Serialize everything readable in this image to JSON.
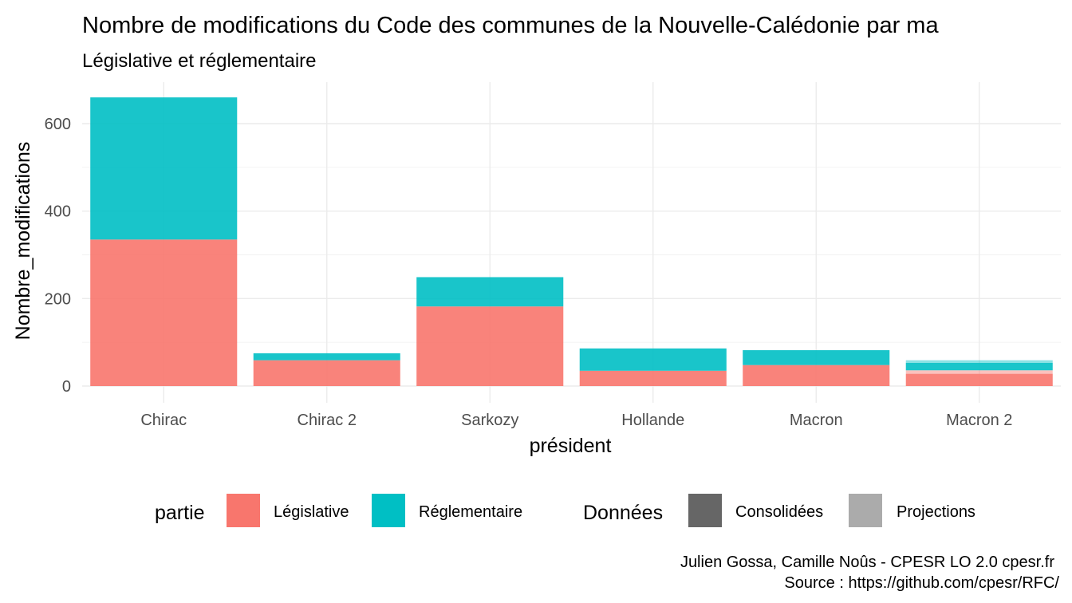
{
  "chart_data": {
    "type": "bar",
    "stacked": true,
    "title": "Nombre de modifications du Code des communes de la Nouvelle-Calédonie par ma",
    "subtitle": "Législative et réglementaire",
    "xlabel": "président",
    "ylabel": "Nombre_modifications",
    "categories": [
      "Chirac",
      "Chirac 2",
      "Sarkozy",
      "Hollande",
      "Macron",
      "Macron 2"
    ],
    "ylim": [
      -10,
      690
    ],
    "yticks": [
      0,
      200,
      400,
      600
    ],
    "grid": true,
    "segments": [
      {
        "category": "Chirac",
        "partie": "Législative",
        "donnees": "Consolidées",
        "value": 335
      },
      {
        "category": "Chirac",
        "partie": "Réglementaire",
        "donnees": "Consolidées",
        "value": 325
      },
      {
        "category": "Chirac 2",
        "partie": "Législative",
        "donnees": "Consolidées",
        "value": 59
      },
      {
        "category": "Chirac 2",
        "partie": "Réglementaire",
        "donnees": "Consolidées",
        "value": 16
      },
      {
        "category": "Sarkozy",
        "partie": "Législative",
        "donnees": "Consolidées",
        "value": 182
      },
      {
        "category": "Sarkozy",
        "partie": "Réglementaire",
        "donnees": "Consolidées",
        "value": 67
      },
      {
        "category": "Hollande",
        "partie": "Législative",
        "donnees": "Consolidées",
        "value": 35
      },
      {
        "category": "Hollande",
        "partie": "Réglementaire",
        "donnees": "Consolidées",
        "value": 51
      },
      {
        "category": "Macron",
        "partie": "Législative",
        "donnees": "Consolidées",
        "value": 48
      },
      {
        "category": "Macron",
        "partie": "Réglementaire",
        "donnees": "Consolidées",
        "value": 34
      },
      {
        "category": "Macron 2",
        "partie": "Législative",
        "donnees": "Consolidées",
        "value": 28
      },
      {
        "category": "Macron 2",
        "partie": "Législative",
        "donnees": "Projections",
        "value": 8
      },
      {
        "category": "Macron 2",
        "partie": "Réglementaire",
        "donnees": "Consolidées",
        "value": 17
      },
      {
        "category": "Macron 2",
        "partie": "Réglementaire",
        "donnees": "Projections",
        "value": 6
      }
    ],
    "colors": {
      "Législative": "#F8766D",
      "Réglementaire": "#00BFC4",
      "Consolidées": "#666666",
      "Projections": "#ABABAB"
    },
    "legend": {
      "position": "bottom",
      "groups": [
        {
          "title": "partie",
          "entries": [
            "Législative",
            "Réglementaire"
          ]
        },
        {
          "title": "Données",
          "entries": [
            "Consolidées",
            "Projections"
          ]
        }
      ]
    },
    "caption": [
      "Julien Gossa, Camille Noûs - CPESR LO 2.0 cpesr.fr",
      "Source : https://github.com/cpesr/RFC/"
    ]
  }
}
